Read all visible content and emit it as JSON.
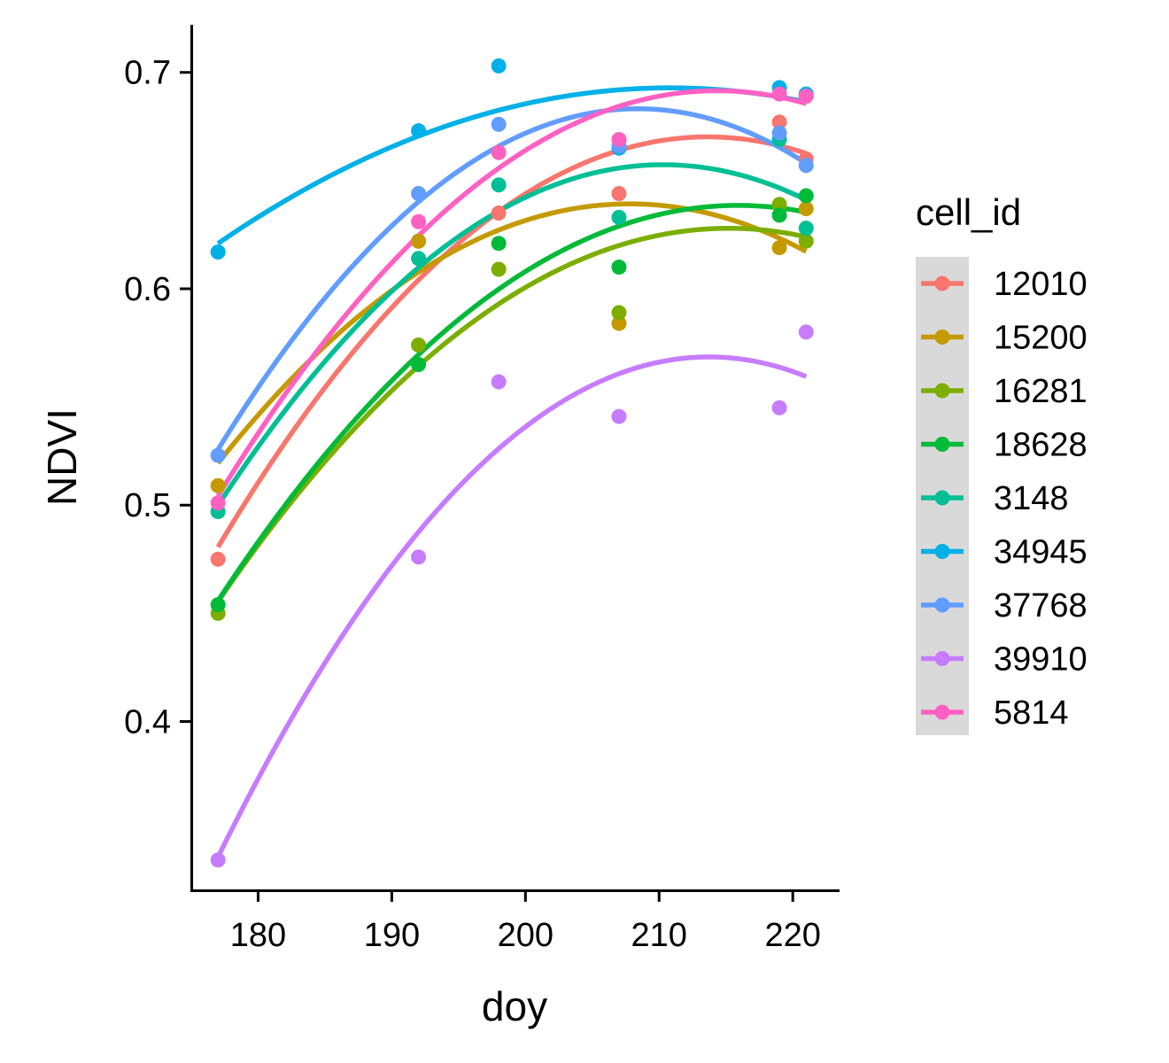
{
  "chart_data": {
    "type": "scatter",
    "title": "",
    "xlabel": "doy",
    "ylabel": "NDVI",
    "xlim": [
      175,
      223.5
    ],
    "ylim": [
      0.322,
      0.722
    ],
    "xticks": [
      180,
      190,
      200,
      210,
      220
    ],
    "yticks": [
      0.4,
      0.5,
      0.6,
      0.7
    ],
    "xtick_labels": [
      "180",
      "190",
      "200",
      "210",
      "220"
    ],
    "ytick_labels": [
      "0.4",
      "0.5",
      "0.6",
      "0.7"
    ],
    "grid": false,
    "legend": {
      "title": "cell_id",
      "placement": "right"
    },
    "trend": "quadratic fit per series",
    "series": [
      {
        "name": "12010",
        "color": "#F8766D",
        "points": [
          [
            177,
            0.475
          ],
          [
            192,
            0.622
          ],
          [
            198,
            0.635
          ],
          [
            207,
            0.644
          ],
          [
            219,
            0.677
          ],
          [
            221,
            0.66
          ]
        ]
      },
      {
        "name": "15200",
        "color": "#C49A00",
        "points": [
          [
            177,
            0.509
          ],
          [
            192,
            0.622
          ],
          [
            198,
            0.663
          ],
          [
            207,
            0.584
          ],
          [
            219,
            0.619
          ],
          [
            221,
            0.637
          ]
        ]
      },
      {
        "name": "16281",
        "color": "#7CAE00",
        "points": [
          [
            177,
            0.45
          ],
          [
            192,
            0.574
          ],
          [
            198,
            0.609
          ],
          [
            207,
            0.589
          ],
          [
            219,
            0.639
          ],
          [
            221,
            0.622
          ]
        ]
      },
      {
        "name": "18628",
        "color": "#00BA38",
        "points": [
          [
            177,
            0.454
          ],
          [
            192,
            0.565
          ],
          [
            198,
            0.621
          ],
          [
            207,
            0.61
          ],
          [
            219,
            0.634
          ],
          [
            221,
            0.643
          ]
        ]
      },
      {
        "name": "3148",
        "color": "#00BF96",
        "points": [
          [
            177,
            0.497
          ],
          [
            192,
            0.614
          ],
          [
            198,
            0.648
          ],
          [
            207,
            0.633
          ],
          [
            219,
            0.669
          ],
          [
            221,
            0.628
          ]
        ]
      },
      {
        "name": "34945",
        "color": "#00B0E8",
        "points": [
          [
            177,
            0.617
          ],
          [
            192,
            0.673
          ],
          [
            198,
            0.703
          ],
          [
            207,
            0.665
          ],
          [
            219,
            0.693
          ],
          [
            221,
            0.69
          ]
        ]
      },
      {
        "name": "37768",
        "color": "#619CFF",
        "points": [
          [
            177,
            0.523
          ],
          [
            192,
            0.644
          ],
          [
            198,
            0.676
          ],
          [
            207,
            0.666
          ],
          [
            219,
            0.672
          ],
          [
            221,
            0.657
          ]
        ]
      },
      {
        "name": "39910",
        "color": "#C77CFF",
        "points": [
          [
            177,
            0.336
          ],
          [
            192,
            0.476
          ],
          [
            198,
            0.557
          ],
          [
            207,
            0.541
          ],
          [
            219,
            0.545
          ],
          [
            221,
            0.58
          ]
        ]
      },
      {
        "name": "5814",
        "color": "#FF61C3",
        "points": [
          [
            177,
            0.501
          ],
          [
            192,
            0.631
          ],
          [
            198,
            0.663
          ],
          [
            207,
            0.669
          ],
          [
            219,
            0.69
          ],
          [
            221,
            0.689
          ]
        ]
      }
    ]
  }
}
